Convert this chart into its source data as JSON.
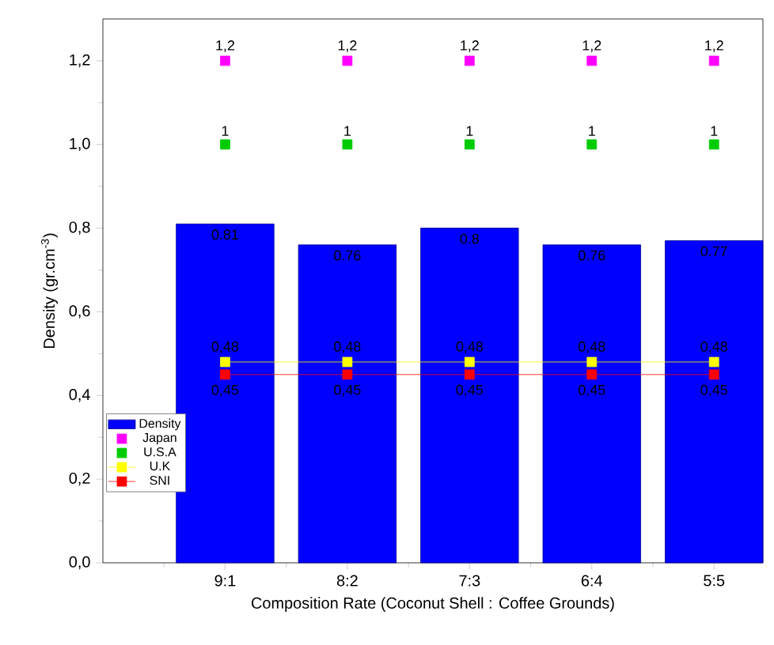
{
  "chart_data": {
    "type": "bar",
    "xlabel": "Composition Rate (Coconut Shell : Coffee Grounds)",
    "ylabel": "Density (gr.cm$^{-3}$)",
    "categories": [
      "9:1",
      "8:2",
      "7:3",
      "6:4",
      "5:5"
    ],
    "series": [
      {
        "name": "Density",
        "type": "bar",
        "color": "#0000ff",
        "values": [
          0.81,
          0.76,
          0.8,
          0.76,
          0.77
        ],
        "value_labels": [
          "0.81",
          "0.76",
          "0.8",
          "0.76",
          "0.77"
        ]
      },
      {
        "name": "Japan",
        "type": "scatter",
        "color": "#ff00ff",
        "values": [
          1.2,
          1.2,
          1.2,
          1.2,
          1.2
        ],
        "value_labels": [
          "1,2",
          "1,2",
          "1,2",
          "1,2",
          "1,2"
        ]
      },
      {
        "name": "U.S.A",
        "type": "scatter",
        "color": "#00cc00",
        "values": [
          1,
          1,
          1,
          1,
          1
        ],
        "value_labels": [
          "1",
          "1",
          "1",
          "1",
          "1"
        ]
      },
      {
        "name": "U.K",
        "type": "line",
        "color": "#ffff00",
        "values": [
          0.48,
          0.48,
          0.48,
          0.48,
          0.48
        ],
        "value_labels": [
          "0,48",
          "0,48",
          "0,48",
          "0,48",
          "0,48"
        ]
      },
      {
        "name": "SNI",
        "type": "line",
        "color": "#ff0000",
        "values": [
          0.45,
          0.45,
          0.45,
          0.45,
          0.45
        ],
        "value_labels": [
          "0,45",
          "0,45",
          "0,45",
          "0,45",
          "0,45"
        ]
      }
    ],
    "ylim": [
      0,
      1.3
    ],
    "yticks": [
      {
        "value": 0,
        "label": "0,0"
      },
      {
        "value": 0.2,
        "label": "0,2"
      },
      {
        "value": 0.4,
        "label": "0,4"
      },
      {
        "value": 0.6,
        "label": "0,6"
      },
      {
        "value": 0.8,
        "label": "0,8"
      },
      {
        "value": 1.0,
        "label": "1,0"
      },
      {
        "value": 1.2,
        "label": "1,2"
      }
    ],
    "legend": "bottom left",
    "marker": "square",
    "grid": false
  }
}
